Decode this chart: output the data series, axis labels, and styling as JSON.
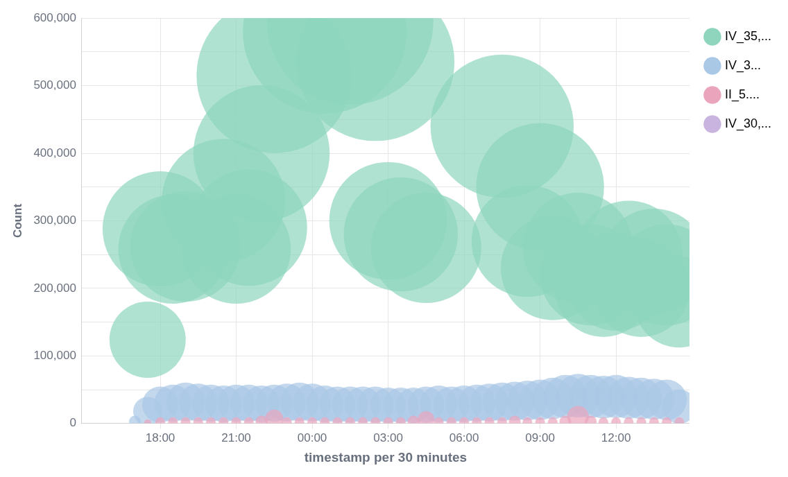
{
  "chart_data": {
    "type": "bubble",
    "xlabel": "timestamp per 30 minutes",
    "ylabel": "Count",
    "legend": "top right",
    "grid": true,
    "marker": "circle",
    "xlim": [
      "--01-01T14:54",
      "--01-02T14:54"
    ],
    "xticks": [
      {
        "value": "--01-01T18:00",
        "label": "18:00"
      },
      {
        "value": "--01-01T21:00",
        "label": "21:00"
      },
      {
        "value": "--01-02T00:00",
        "label": "00:00"
      },
      {
        "value": "--01-02T03:00",
        "label": "03:00"
      },
      {
        "value": "--01-02T06:00",
        "label": "06:00"
      },
      {
        "value": "--01-02T09:00",
        "label": "09:00"
      },
      {
        "value": "--01-02T12:00",
        "label": "12:00"
      }
    ],
    "ylim": [
      0,
      600000
    ],
    "yticks": [
      {
        "value": 0,
        "label": "0"
      },
      {
        "value": 50000,
        "label": null
      },
      {
        "value": 100000,
        "label": "100,000"
      },
      {
        "value": 150000,
        "label": null
      },
      {
        "value": 200000,
        "label": "200,000"
      },
      {
        "value": 250000,
        "label": null
      },
      {
        "value": 300000,
        "label": "300,000"
      },
      {
        "value": 350000,
        "label": null
      },
      {
        "value": 400000,
        "label": "400,000"
      },
      {
        "value": 450000,
        "label": null
      },
      {
        "value": 500000,
        "label": "500,000"
      },
      {
        "value": 550000,
        "label": null
      },
      {
        "value": 600000,
        "label": "600,000"
      }
    ],
    "series": [
      {
        "name": "IV_35,...",
        "color": "#8fd5bd",
        "x": [
          "--01-01T17:30",
          "--01-01T18:00",
          "--01-01T18:30",
          "--01-01T19:00",
          "--01-01T20:30",
          "--01-01T21:00",
          "--01-01T21:30",
          "--01-01T22:00",
          "--01-01T22:30",
          "--01-02T00:30",
          "--01-02T01:30",
          "--01-02T02:30",
          "--01-02T03:00",
          "--01-02T03:30",
          "--01-02T04:30",
          "--01-02T07:30",
          "--01-02T08:30",
          "--01-02T09:00",
          "--01-02T09:30",
          "--01-02T10:30",
          "--01-02T11:00",
          "--01-02T11:30",
          "--01-02T12:00",
          "--01-02T12:30",
          "--01-02T13:00",
          "--01-02T13:30",
          "--01-02T14:00",
          "--01-02T14:30"
        ],
        "values": [
          124000,
          288000,
          258000,
          262000,
          330000,
          258000,
          290000,
          400000,
          515000,
          580000,
          595000,
          535000,
          300000,
          280000,
          260000,
          440000,
          270000,
          350000,
          230000,
          260000,
          220000,
          200000,
          210000,
          250000,
          200000,
          240000,
          220000,
          180000
        ],
        "sizes": [
          0.21,
          0.48,
          0.43,
          0.44,
          0.55,
          0.43,
          0.49,
          0.67,
          0.87,
          0.97,
          1,
          0.9,
          0.5,
          0.47,
          0.44,
          0.74,
          0.45,
          0.59,
          0.39,
          0.44,
          0.37,
          0.34,
          0.35,
          0.42,
          0.34,
          0.4,
          0.37,
          0.3
        ]
      },
      {
        "name": "IV_3...",
        "color": "#a9c8e6",
        "x": [
          "--01-01T17:00",
          "--01-01T17:30",
          "--01-01T18:00",
          "--01-01T18:30",
          "--01-01T19:00",
          "--01-01T19:30",
          "--01-01T20:00",
          "--01-01T20:30",
          "--01-01T21:00",
          "--01-01T21:30",
          "--01-01T22:00",
          "--01-01T22:30",
          "--01-01T23:00",
          "--01-01T23:30",
          "--01-02T00:00",
          "--01-02T00:30",
          "--01-02T01:00",
          "--01-02T01:30",
          "--01-02T02:00",
          "--01-02T02:30",
          "--01-02T03:00",
          "--01-02T03:30",
          "--01-02T04:00",
          "--01-02T04:30",
          "--01-02T05:00",
          "--01-02T05:30",
          "--01-02T06:00",
          "--01-02T06:30",
          "--01-02T07:00",
          "--01-02T07:30",
          "--01-02T08:00",
          "--01-02T08:30",
          "--01-02T09:00",
          "--01-02T09:30",
          "--01-02T10:00",
          "--01-02T10:30",
          "--01-02T11:00",
          "--01-02T11:30",
          "--01-02T12:00",
          "--01-02T12:30",
          "--01-02T13:00",
          "--01-02T13:30",
          "--01-02T14:00",
          "--01-02T14:30"
        ],
        "values": [
          3000,
          18000,
          28000,
          30000,
          32000,
          31000,
          30000,
          29000,
          30000,
          30000,
          29000,
          30000,
          31000,
          32000,
          31000,
          29000,
          28000,
          28000,
          28000,
          28000,
          27000,
          27000,
          27000,
          28000,
          29000,
          28000,
          29000,
          30000,
          31000,
          32000,
          33000,
          34000,
          35000,
          37000,
          40000,
          41000,
          40000,
          39000,
          40000,
          38000,
          37000,
          36000,
          35000,
          25000
        ],
        "sizes": [
          0.005,
          0.03,
          0.047,
          0.05,
          0.054,
          0.052,
          0.05,
          0.049,
          0.05,
          0.05,
          0.049,
          0.05,
          0.052,
          0.054,
          0.052,
          0.049,
          0.047,
          0.047,
          0.047,
          0.047,
          0.045,
          0.045,
          0.045,
          0.047,
          0.049,
          0.047,
          0.049,
          0.05,
          0.052,
          0.054,
          0.055,
          0.057,
          0.059,
          0.062,
          0.067,
          0.069,
          0.067,
          0.066,
          0.067,
          0.064,
          0.062,
          0.06,
          0.059,
          0.042
        ]
      },
      {
        "name": "II_5....",
        "color": "#eaa5bd",
        "x": [
          "--01-01T17:30",
          "--01-01T18:00",
          "--01-01T18:30",
          "--01-01T19:00",
          "--01-01T19:30",
          "--01-01T20:00",
          "--01-01T20:30",
          "--01-01T21:00",
          "--01-01T21:30",
          "--01-01T22:00",
          "--01-01T22:30",
          "--01-01T23:00",
          "--01-01T23:30",
          "--01-02T00:00",
          "--01-02T00:30",
          "--01-02T01:00",
          "--01-02T01:30",
          "--01-02T02:00",
          "--01-02T02:30",
          "--01-02T03:00",
          "--01-02T03:30",
          "--01-02T04:00",
          "--01-02T04:30",
          "--01-02T05:00",
          "--01-02T05:30",
          "--01-02T06:00",
          "--01-02T06:30",
          "--01-02T07:00",
          "--01-02T07:30",
          "--01-02T08:00",
          "--01-02T08:30",
          "--01-02T09:00",
          "--01-02T09:30",
          "--01-02T10:00",
          "--01-02T10:30",
          "--01-02T11:00",
          "--01-02T11:30",
          "--01-02T12:00",
          "--01-02T12:30",
          "--01-02T13:00",
          "--01-02T13:30",
          "--01-02T14:00",
          "--01-02T14:30"
        ],
        "values": [
          1000,
          2000,
          2000,
          2000,
          2000,
          2000,
          2000,
          2000,
          2000,
          3000,
          7000,
          2000,
          2000,
          2000,
          2000,
          2000,
          2000,
          2000,
          2000,
          2000,
          2000,
          3000,
          6000,
          2000,
          2000,
          2000,
          2000,
          2000,
          2000,
          3000,
          2000,
          2000,
          2000,
          3000,
          10000,
          3000,
          2000,
          2000,
          2000,
          2000,
          2000,
          2000,
          2000
        ],
        "sizes": [
          0.0017,
          0.0034,
          0.0034,
          0.0034,
          0.0034,
          0.0034,
          0.0034,
          0.0034,
          0.0034,
          0.005,
          0.012,
          0.0034,
          0.0034,
          0.0034,
          0.0034,
          0.0034,
          0.0034,
          0.0034,
          0.0034,
          0.0034,
          0.0034,
          0.005,
          0.01,
          0.0034,
          0.0034,
          0.0034,
          0.0034,
          0.0034,
          0.0034,
          0.005,
          0.0034,
          0.0034,
          0.0034,
          0.005,
          0.017,
          0.005,
          0.0034,
          0.0034,
          0.0034,
          0.0034,
          0.0034,
          0.0034,
          0.0034
        ]
      },
      {
        "name": "IV_30,...",
        "color": "#c9b4e0"
      }
    ]
  }
}
